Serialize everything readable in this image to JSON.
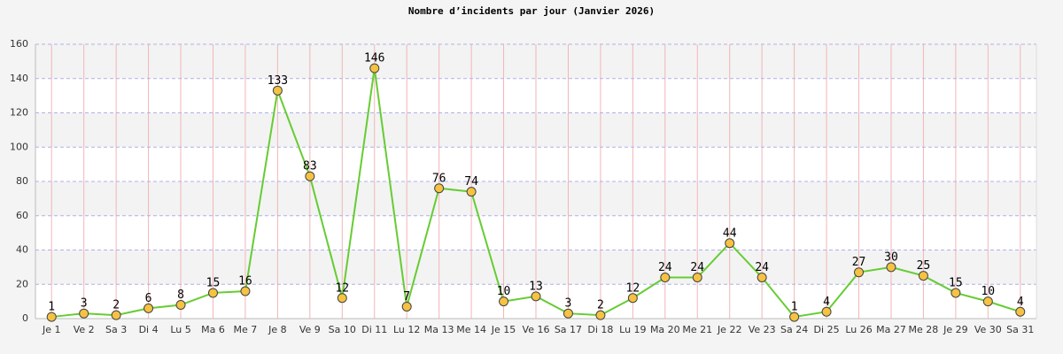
{
  "chart_data": {
    "type": "line",
    "title": "Nombre d’incidents par jour (Janvier 2026)",
    "categories": [
      "Je 1",
      "Ve 2",
      "Sa 3",
      "Di 4",
      "Lu 5",
      "Ma 6",
      "Me 7",
      "Je 8",
      "Ve 9",
      "Sa 10",
      "Di 11",
      "Lu 12",
      "Ma 13",
      "Me 14",
      "Je 15",
      "Ve 16",
      "Sa 17",
      "Di 18",
      "Lu 19",
      "Ma 20",
      "Me 21",
      "Je 22",
      "Ve 23",
      "Sa 24",
      "Di 25",
      "Lu 26",
      "Ma 27",
      "Me 28",
      "Je 29",
      "Ve 30",
      "Sa 31"
    ],
    "values": [
      1,
      3,
      2,
      6,
      8,
      15,
      16,
      133,
      83,
      12,
      146,
      7,
      76,
      74,
      10,
      13,
      3,
      2,
      12,
      24,
      24,
      44,
      24,
      1,
      4,
      27,
      30,
      25,
      15,
      10,
      4
    ],
    "color": "#66cc33",
    "marker_color": "#f5c242",
    "ylim": [
      0,
      160
    ],
    "yticks": [
      0,
      20,
      40,
      60,
      80,
      100,
      120,
      140,
      160
    ],
    "grid": true
  }
}
